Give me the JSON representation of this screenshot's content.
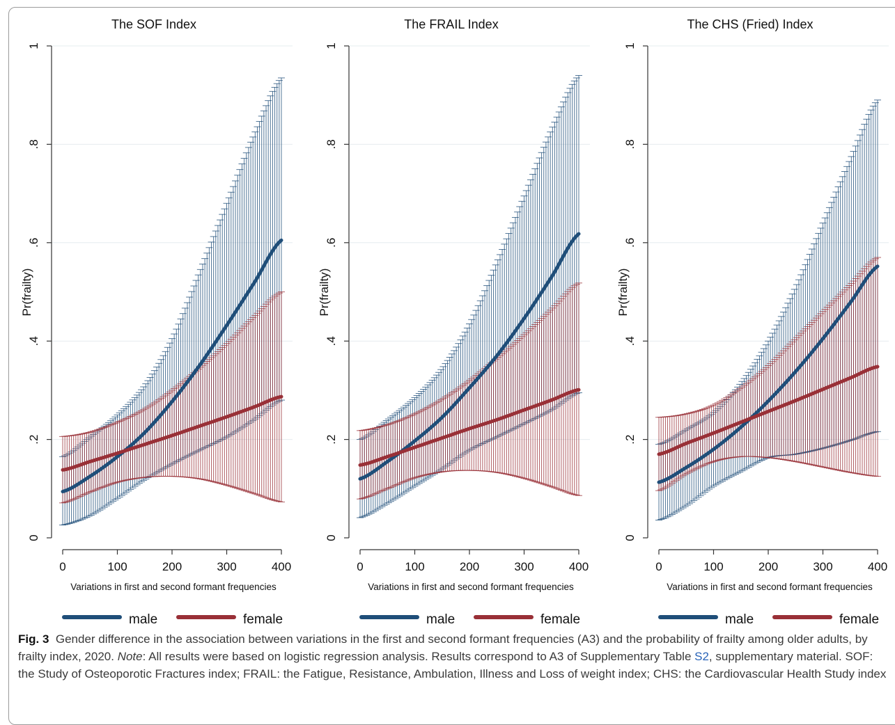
{
  "chart_data": [
    {
      "type": "line",
      "title": "The SOF Index",
      "xlabel": "Variations in first and second formant frequencies",
      "ylabel": "Pr(frailty)",
      "x_ticks": [
        "0",
        "100",
        "200",
        "300",
        "400"
      ],
      "y_ticks": [
        "0",
        ".2",
        ".4",
        ".6",
        ".8",
        "1"
      ],
      "xlim": [
        0,
        400
      ],
      "ylim": [
        0,
        1
      ],
      "grid": "horizontal",
      "legend": "bottom",
      "x": [
        0,
        50,
        100,
        150,
        200,
        250,
        300,
        350,
        400
      ],
      "series": [
        {
          "name": "male",
          "color": "#1f4e79",
          "values": [
            0.094,
            0.125,
            0.165,
            0.214,
            0.277,
            0.35,
            0.432,
            0.518,
            0.605
          ],
          "lower": [
            0.026,
            0.045,
            0.08,
            0.118,
            0.15,
            0.178,
            0.205,
            0.24,
            0.28
          ],
          "upper": [
            0.165,
            0.205,
            0.25,
            0.31,
            0.405,
            0.54,
            0.68,
            0.82,
            0.935
          ]
        },
        {
          "name": "female",
          "color": "#993037",
          "values": [
            0.138,
            0.155,
            0.172,
            0.19,
            0.208,
            0.227,
            0.246,
            0.266,
            0.287
          ],
          "lower": [
            0.071,
            0.093,
            0.113,
            0.123,
            0.125,
            0.12,
            0.107,
            0.09,
            0.073
          ],
          "upper": [
            0.206,
            0.215,
            0.235,
            0.262,
            0.3,
            0.345,
            0.395,
            0.45,
            0.5
          ]
        }
      ]
    },
    {
      "type": "line",
      "title": "The FRAIL Index",
      "xlabel": "Variations in first and second formant frequencies",
      "ylabel": "Pr(frailty)",
      "x_ticks": [
        "0",
        "100",
        "200",
        "300",
        "400"
      ],
      "y_ticks": [
        "0",
        ".2",
        ".4",
        ".6",
        ".8",
        "1"
      ],
      "xlim": [
        0,
        400
      ],
      "ylim": [
        0,
        1
      ],
      "grid": "horizontal",
      "legend": "bottom",
      "x": [
        0,
        50,
        100,
        150,
        200,
        250,
        300,
        350,
        400
      ],
      "series": [
        {
          "name": "male",
          "color": "#1f4e79",
          "values": [
            0.12,
            0.155,
            0.197,
            0.245,
            0.305,
            0.37,
            0.446,
            0.53,
            0.618
          ],
          "lower": [
            0.041,
            0.07,
            0.105,
            0.14,
            0.178,
            0.205,
            0.232,
            0.26,
            0.295
          ],
          "upper": [
            0.2,
            0.24,
            0.285,
            0.345,
            0.435,
            0.56,
            0.695,
            0.83,
            0.94
          ]
        },
        {
          "name": "female",
          "color": "#993037",
          "values": [
            0.148,
            0.165,
            0.184,
            0.203,
            0.222,
            0.24,
            0.26,
            0.28,
            0.301
          ],
          "lower": [
            0.079,
            0.1,
            0.122,
            0.134,
            0.137,
            0.133,
            0.121,
            0.104,
            0.086
          ],
          "upper": [
            0.218,
            0.23,
            0.252,
            0.282,
            0.32,
            0.365,
            0.413,
            0.465,
            0.518
          ]
        }
      ]
    },
    {
      "type": "line",
      "title": "The CHS (Fried) Index",
      "xlabel": "Variations in first and second formant frequencies",
      "ylabel": "Pr(frailty)",
      "x_ticks": [
        "0",
        "100",
        "200",
        "300",
        "400"
      ],
      "y_ticks": [
        "0",
        ".2",
        ".4",
        ".6",
        ".8",
        "1"
      ],
      "xlim": [
        0,
        400
      ],
      "ylim": [
        0,
        1
      ],
      "grid": "horizontal",
      "legend": "bottom",
      "x": [
        0,
        50,
        100,
        150,
        200,
        250,
        300,
        350,
        400
      ],
      "series": [
        {
          "name": "male",
          "color": "#1f4e79",
          "values": [
            0.113,
            0.143,
            0.18,
            0.225,
            0.278,
            0.338,
            0.405,
            0.478,
            0.552
          ],
          "lower": [
            0.036,
            0.065,
            0.105,
            0.135,
            0.163,
            0.17,
            0.182,
            0.198,
            0.216
          ],
          "upper": [
            0.19,
            0.22,
            0.255,
            0.315,
            0.4,
            0.51,
            0.64,
            0.77,
            0.89
          ]
        },
        {
          "name": "female",
          "color": "#993037",
          "values": [
            0.17,
            0.192,
            0.213,
            0.235,
            0.257,
            0.279,
            0.302,
            0.325,
            0.348
          ],
          "lower": [
            0.096,
            0.13,
            0.155,
            0.165,
            0.163,
            0.155,
            0.144,
            0.133,
            0.125
          ],
          "upper": [
            0.245,
            0.252,
            0.27,
            0.305,
            0.35,
            0.405,
            0.46,
            0.515,
            0.57
          ]
        }
      ]
    }
  ],
  "caption": {
    "label": "Fig. 3",
    "text1": "Gender difference in the association between variations in the first and second formant frequencies (A3) and the probability of frailty among older adults, by frailty index, 2020. ",
    "note_label": "Note",
    "text2": ": All results were based on logistic regression analysis. Results correspond to A3 of Supplementary Table ",
    "link": "S2",
    "text3": ", supplementary material. SOF: the Study of Osteoporotic Fractures index; FRAIL: the Fatigue, Resistance, Ambulation, Illness and Loss of weight index; CHS: the Cardiovascular Health Study index"
  }
}
